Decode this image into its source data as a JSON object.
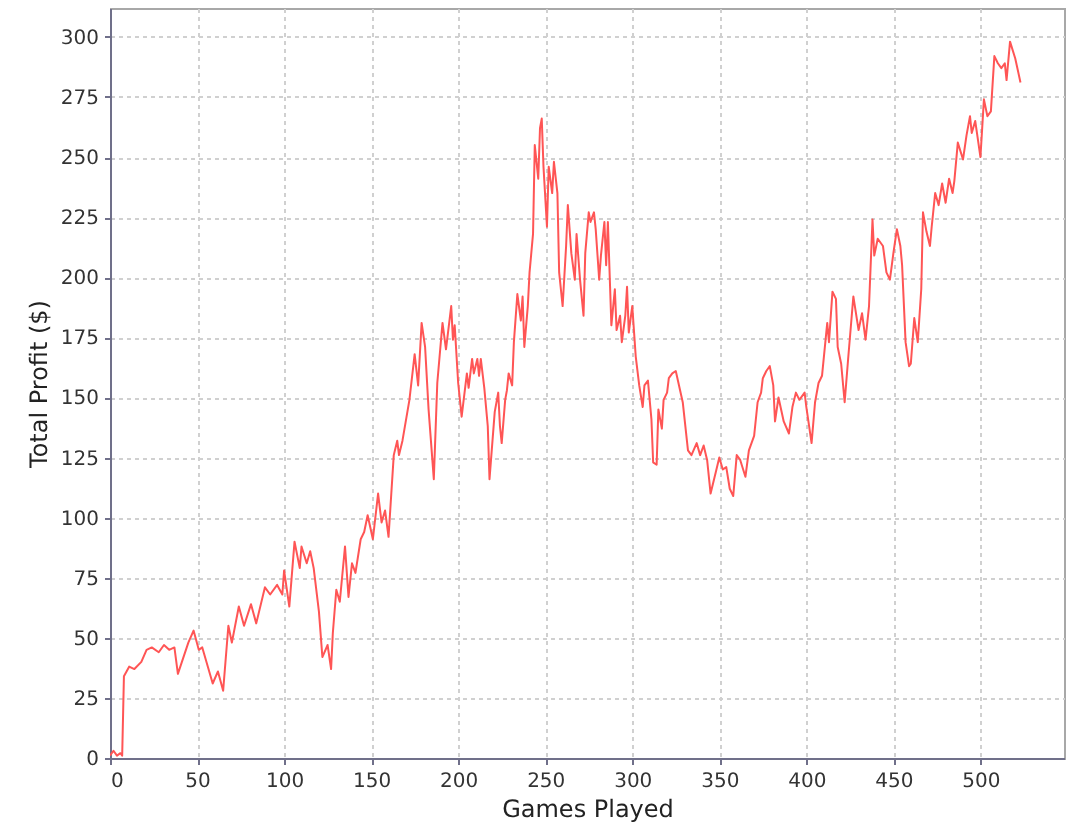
{
  "chart_data": {
    "type": "line",
    "xlabel": "Games Played",
    "ylabel": "Total Profit ($)",
    "x": [
      0,
      2,
      4,
      6,
      7,
      8,
      11,
      14,
      18,
      21,
      24,
      28,
      31,
      34,
      37,
      39,
      45,
      48,
      51,
      53,
      59,
      62,
      65,
      68,
      70,
      74,
      77,
      81,
      84,
      89,
      92,
      96,
      99,
      100,
      103,
      106,
      109,
      110,
      113,
      115,
      117,
      120,
      122,
      125,
      127,
      128,
      130,
      132,
      135,
      137,
      139,
      141,
      144,
      146,
      148,
      151,
      154,
      156,
      158,
      160,
      163,
      165,
      166,
      168,
      172,
      175,
      177,
      179,
      181,
      183,
      186,
      188,
      191,
      193,
      196,
      197,
      198,
      200,
      202,
      205,
      206,
      208,
      209,
      211,
      212,
      213,
      215,
      217,
      218,
      221,
      223,
      224,
      225,
      227,
      228,
      229,
      231,
      232,
      234,
      236,
      237,
      238,
      240,
      241,
      243,
      244,
      246,
      247,
      248,
      249,
      251,
      252,
      254,
      255,
      257,
      258,
      260,
      262,
      263,
      265,
      267,
      268,
      270,
      272,
      273,
      275,
      276,
      278,
      279,
      281,
      282,
      284,
      285,
      286,
      288,
      290,
      291,
      293,
      294,
      296,
      297,
      298,
      300,
      302,
      304,
      306,
      307,
      309,
      311,
      312,
      314,
      315,
      317,
      318,
      320,
      321,
      323,
      325,
      329,
      332,
      334,
      337,
      339,
      341,
      343,
      345,
      348,
      350,
      352,
      354,
      356,
      358,
      360,
      362,
      365,
      367,
      370,
      372,
      374,
      375,
      377,
      379,
      381,
      382,
      384,
      387,
      390,
      392,
      394,
      396,
      399,
      400,
      403,
      405,
      407,
      409,
      412,
      413,
      415,
      417,
      418,
      420,
      422,
      424,
      427,
      430,
      432,
      434,
      436,
      438,
      439,
      441,
      444,
      446,
      448,
      450,
      452,
      454,
      455,
      457,
      459,
      460,
      462,
      464,
      466,
      467,
      469,
      471,
      472,
      474,
      476,
      478,
      480,
      482,
      484,
      485,
      487,
      490,
      492,
      494,
      495,
      497,
      500,
      502,
      504,
      506,
      508,
      510,
      512,
      514,
      515,
      517,
      520,
      523
    ],
    "series": [
      {
        "color": "#ff5555",
        "values": [
          1,
          3,
          1,
          2,
          1,
          34,
          38,
          37,
          40,
          45,
          46,
          44,
          47,
          45,
          46,
          35,
          48,
          53,
          45,
          46,
          31,
          36,
          28,
          55,
          48,
          63,
          55,
          64,
          56,
          71,
          68,
          72,
          68,
          78,
          63,
          90,
          79,
          88,
          81,
          86,
          79,
          61,
          42,
          47,
          37,
          52,
          70,
          65,
          88,
          67,
          81,
          77,
          91,
          94,
          101,
          91,
          110,
          98,
          103,
          92,
          126,
          132,
          126,
          132,
          149,
          168,
          155,
          181,
          171,
          145,
          116,
          156,
          181,
          170,
          188,
          174,
          180,
          156,
          142,
          160,
          154,
          166,
          160,
          166,
          159,
          166,
          154,
          138,
          116,
          144,
          152,
          138,
          131,
          149,
          153,
          160,
          155,
          173,
          193,
          182,
          192,
          171,
          188,
          202,
          218,
          255,
          241,
          262,
          266,
          246,
          221,
          246,
          235,
          248,
          235,
          202,
          188,
          213,
          230,
          210,
          199,
          218,
          199,
          184,
          210,
          227,
          223,
          227,
          220,
          199,
          209,
          223,
          205,
          223,
          180,
          195,
          178,
          184,
          173,
          184,
          196,
          177,
          188,
          167,
          155,
          146,
          155,
          157,
          141,
          123,
          122,
          145,
          137,
          149,
          152,
          158,
          160,
          161,
          148,
          128,
          126,
          131,
          126,
          130,
          124,
          110,
          119,
          125,
          120,
          121,
          112,
          109,
          126,
          124,
          117,
          128,
          134,
          148,
          152,
          158,
          161,
          163,
          155,
          140,
          150,
          140,
          135,
          146,
          152,
          149,
          152,
          146,
          131,
          148,
          156,
          159,
          181,
          173,
          194,
          191,
          171,
          164,
          148,
          166,
          192,
          178,
          185,
          174,
          188,
          224,
          209,
          216,
          213,
          202,
          199,
          210,
          220,
          213,
          205,
          173,
          163,
          164,
          183,
          173,
          195,
          227,
          219,
          213,
          221,
          235,
          230,
          239,
          231,
          241,
          235,
          240,
          256,
          249,
          259,
          267,
          260,
          265,
          250,
          274,
          267,
          269,
          292,
          289,
          287,
          289,
          282,
          298,
          291,
          281
        ]
      }
    ],
    "xlim": [
      0,
      548
    ],
    "ylim": [
      0,
      312
    ],
    "xticks": [
      0,
      50,
      100,
      150,
      200,
      250,
      300,
      350,
      400,
      450,
      500
    ],
    "yticks": [
      0,
      25,
      50,
      75,
      100,
      125,
      150,
      175,
      200,
      225,
      250,
      275,
      300
    ],
    "grid": true,
    "line_style": "solid"
  }
}
